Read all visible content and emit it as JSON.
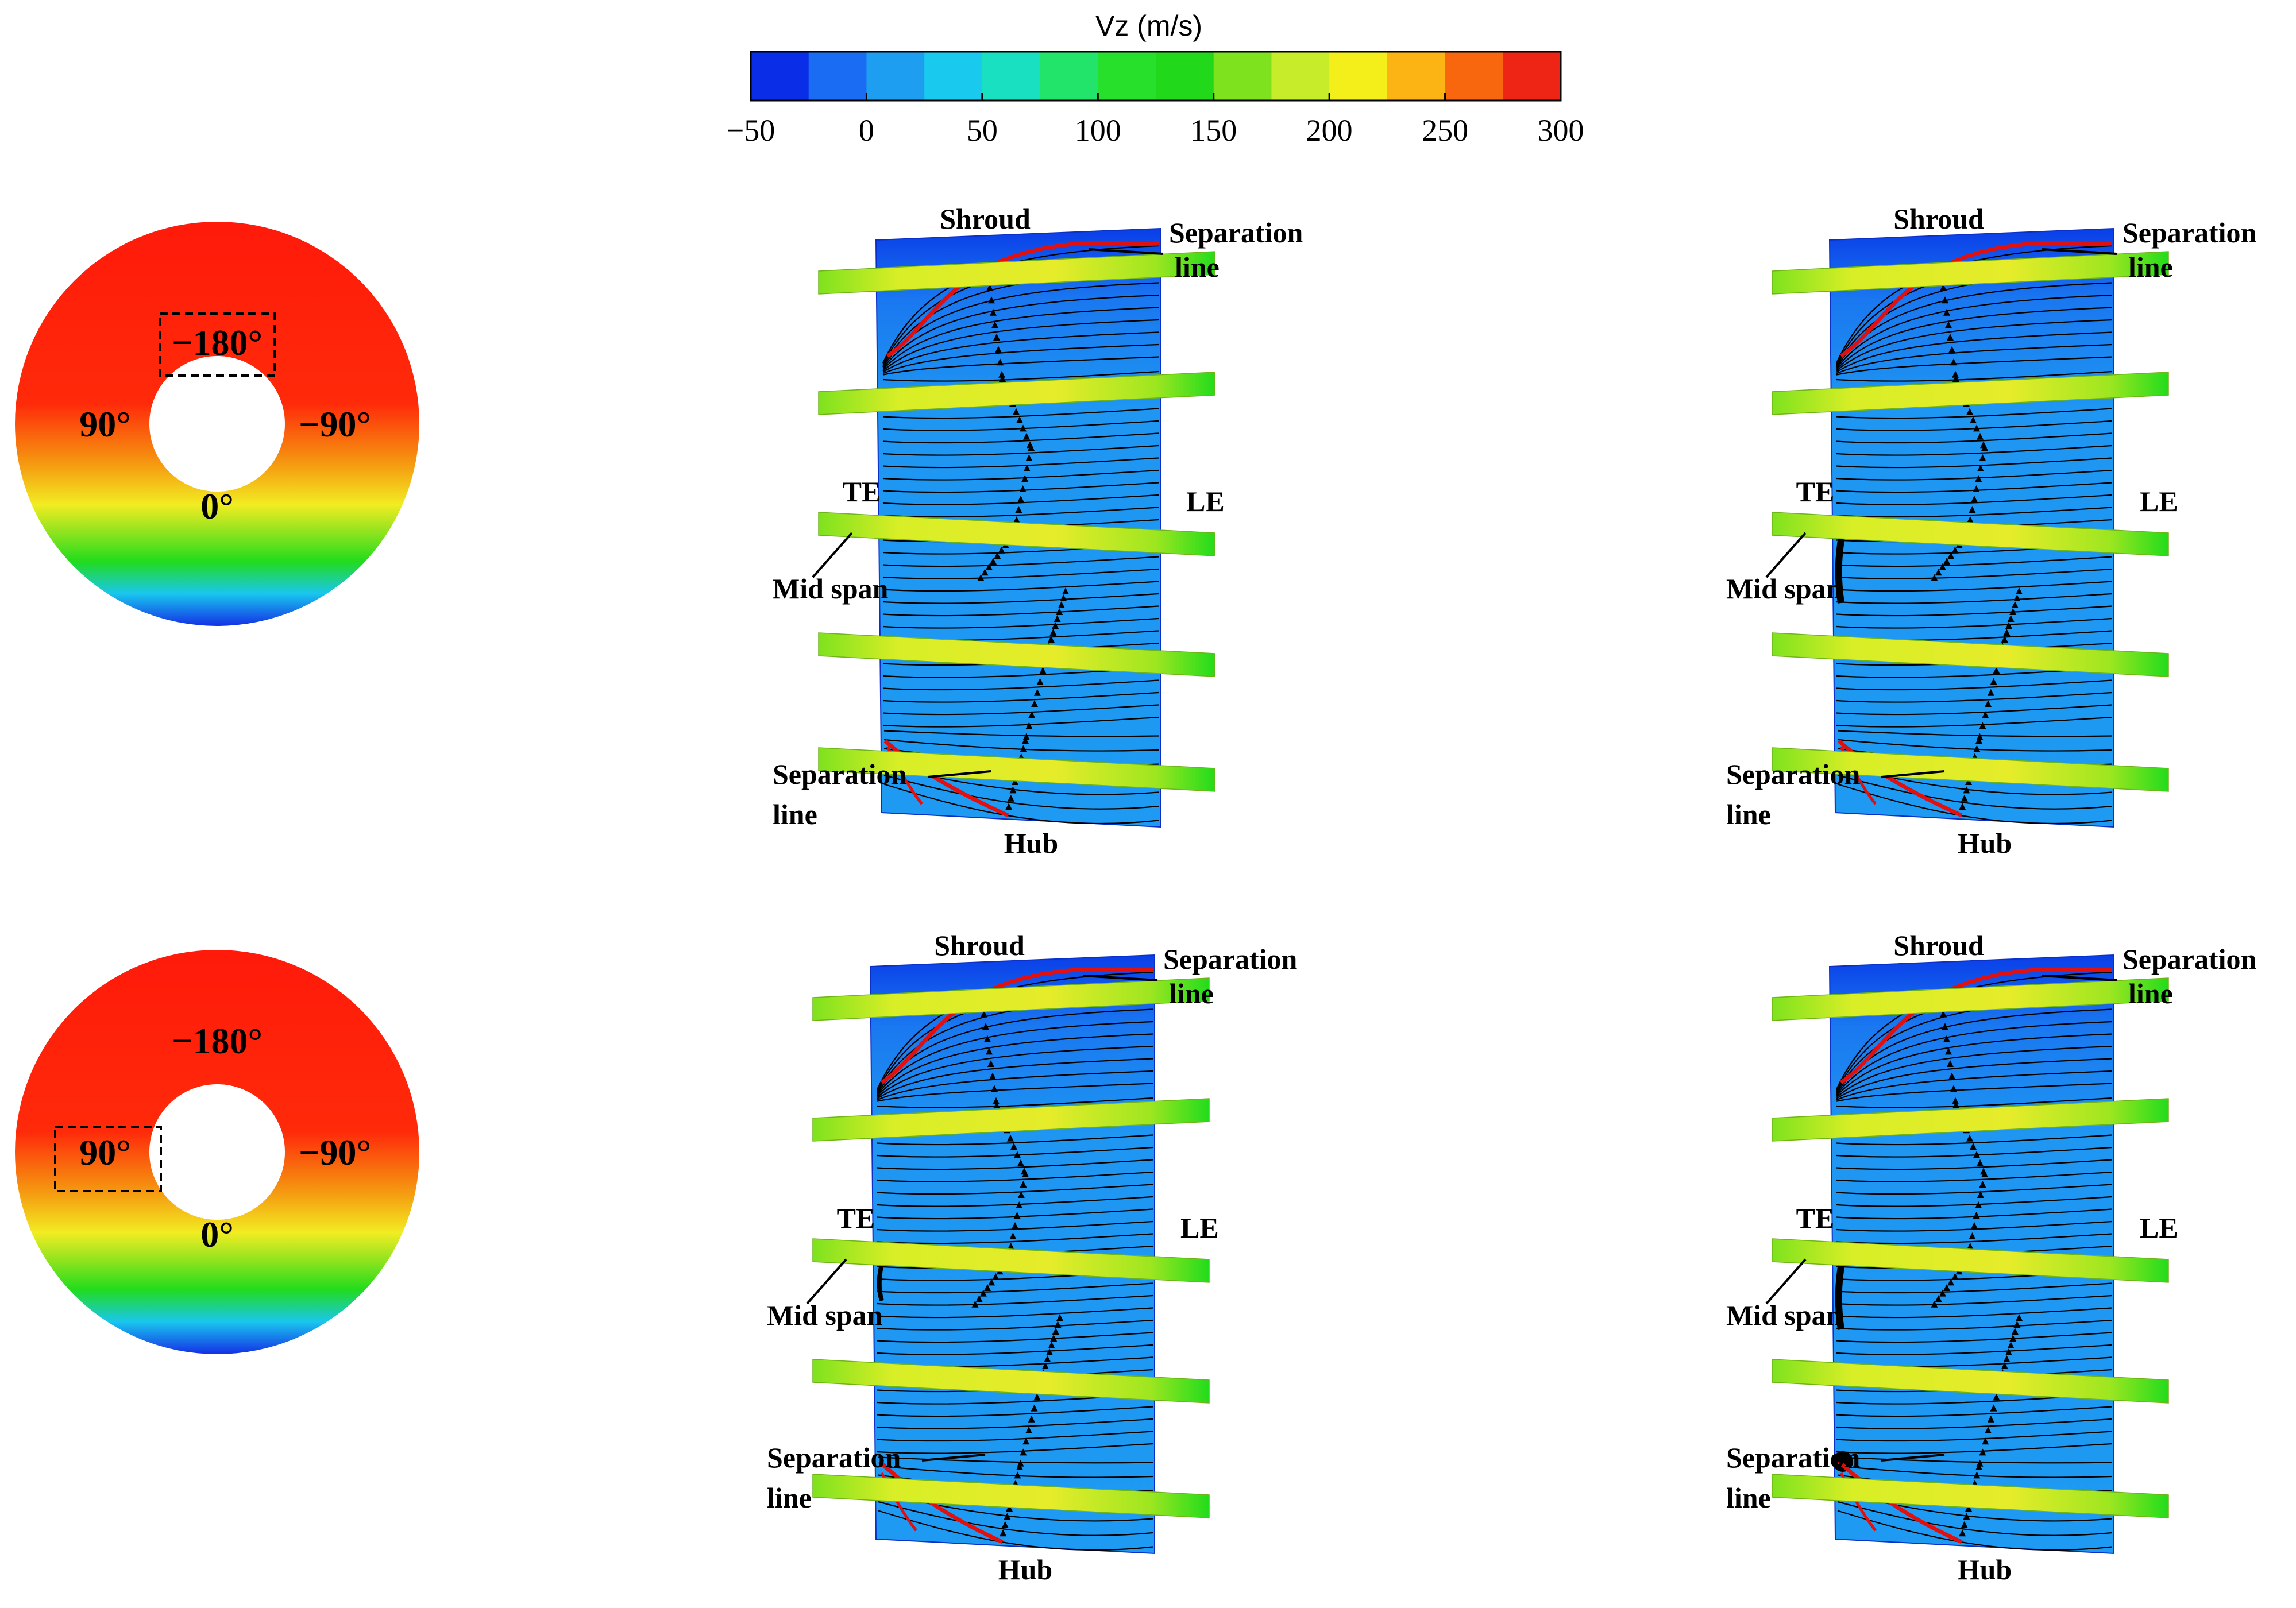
{
  "colorbar": {
    "title": "Vz (m/s)",
    "ticks": [
      "−50",
      "0",
      "50",
      "100",
      "150",
      "200",
      "250",
      "300"
    ],
    "colors": [
      "#0a2ee8",
      "#1a6cf2",
      "#1e9ef0",
      "#19c9ee",
      "#18e0c0",
      "#22e46a",
      "#26e02c",
      "#22d81a",
      "#7ee21e",
      "#c6ec2a",
      "#f4ee1a",
      "#fbb414",
      "#f8660e",
      "#ee2414"
    ]
  },
  "rings": [
    {
      "top": "−180°",
      "left": "90°",
      "right": "−90°",
      "bottom": "0°",
      "boxed": "top"
    },
    {
      "top": "−180°",
      "left": "90°",
      "right": "−90°",
      "bottom": "0°",
      "boxed": "left"
    }
  ],
  "labels": {
    "shroud": "Shroud",
    "hub": "Hub",
    "te": "TE",
    "le": "LE",
    "mid_span": "Mid span",
    "separation": "Separation",
    "line": "line"
  },
  "ring_colors": {
    "top": "#ff1a0a",
    "mid": "#f59a10",
    "yellow": "#f2ec22",
    "green": "#22dc1c",
    "cyan": "#19c6ee",
    "blue": "#1430e6"
  },
  "blade_colors": {
    "surface": "#1e90f0",
    "shroud": "#0a3ee8",
    "streamline": "#000000",
    "separation": "#e01010",
    "band": "#c8ec2a"
  }
}
